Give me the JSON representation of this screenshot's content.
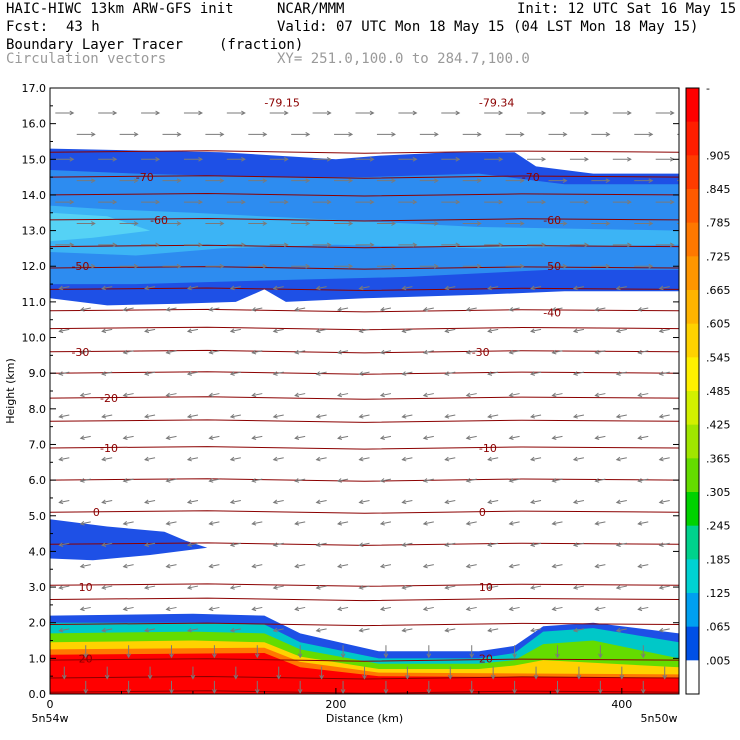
{
  "header": {
    "model_title": "HAIC-HIWC 13km ARW-GFS init",
    "org": "NCAR/MMM",
    "init": "Init: 12 UTC Sat 16 May 15",
    "fcst_label": "Fcst:",
    "fcst_value": "43 h",
    "valid": "Valid: 07 UTC Mon 18 May 15 (04 LST Mon 18 May 15)",
    "field": "Boundary Layer Tracer",
    "units": "(fraction)",
    "overlay": "Circulation vectors",
    "xsec": "XY= 251.0,100.0 to 284.7,100.0"
  },
  "chart_data": {
    "type": "heatmap",
    "title": "Boundary Layer Tracer",
    "units": "(fraction)",
    "xlabel": "Distance (km)",
    "ylabel": "Height (km)",
    "xlim": [
      0,
      440
    ],
    "ylim": [
      0,
      17
    ],
    "x_ticks": [
      0,
      200,
      400
    ],
    "y_ticks": [
      "0.0",
      "1.0",
      "2.0",
      "3.0",
      "4.0",
      "5.0",
      "6.0",
      "7.0",
      "8.0",
      "9.0",
      "10.0",
      "11.0",
      "12.0",
      "13.0",
      "14.0",
      "15.0",
      "16.0",
      "17.0"
    ],
    "x_endpoint_labels": {
      "left": "5n54w",
      "right": "5n50w"
    },
    "colorbar": {
      "labels": [
        "-",
        ".905",
        ".845",
        ".785",
        ".725",
        ".665",
        ".605",
        ".545",
        ".485",
        ".425",
        ".365",
        ".305",
        ".245",
        ".185",
        ".125",
        ".065",
        ".005"
      ],
      "colors": [
        "#ff0000",
        "#ff1e00",
        "#ff3c00",
        "#ff5a00",
        "#ff7800",
        "#ff9600",
        "#ffb400",
        "#ffd200",
        "#fff000",
        "#d2f000",
        "#a0e600",
        "#64dc00",
        "#00d200",
        "#00d28c",
        "#00d2d2",
        "#00a0f0",
        "#0050e6",
        "#ffffff"
      ]
    },
    "temperature_contours": {
      "color": "#8b0000",
      "labeled_levels": [
        {
          "value": "-79.15",
          "x": 150,
          "y": 16.6
        },
        {
          "value": "-79.34",
          "x": 300,
          "y": 16.6
        },
        {
          "value": "-70",
          "x": 60,
          "y": 14.5
        },
        {
          "value": "-70",
          "x": 330,
          "y": 14.5
        },
        {
          "value": "-60",
          "x": 70,
          "y": 13.3
        },
        {
          "value": "-60",
          "x": 345,
          "y": 13.3
        },
        {
          "value": "-50",
          "x": 15,
          "y": 12.0
        },
        {
          "value": "-50",
          "x": 345,
          "y": 12.0
        },
        {
          "value": "-40",
          "x": 345,
          "y": 10.7
        },
        {
          "value": "-30",
          "x": 15,
          "y": 9.6
        },
        {
          "value": "-30",
          "x": 295,
          "y": 9.6
        },
        {
          "value": "-20",
          "x": 35,
          "y": 8.3
        },
        {
          "value": "-10",
          "x": 35,
          "y": 6.9
        },
        {
          "value": "-10",
          "x": 300,
          "y": 6.9
        },
        {
          "value": "0",
          "x": 30,
          "y": 5.1
        },
        {
          "value": "0",
          "x": 300,
          "y": 5.1
        },
        {
          "value": "10",
          "x": 20,
          "y": 3.0
        },
        {
          "value": "10",
          "x": 300,
          "y": 3.0
        },
        {
          "value": "20",
          "x": 20,
          "y": 1.0
        },
        {
          "value": "20",
          "x": 300,
          "y": 1.0
        }
      ],
      "line_levels_km": [
        0.05,
        0.45,
        0.95,
        1.95,
        2.65,
        3.05,
        4.2,
        5.1,
        6.0,
        6.9,
        7.65,
        8.3,
        9.0,
        9.6,
        10.25,
        10.75,
        11.35,
        11.95,
        12.55,
        13.3,
        14.0,
        14.5,
        15.2
      ]
    },
    "wind_vectors": {
      "rows_km": [
        16.3,
        15.7,
        15.0,
        14.4,
        13.8,
        13.2,
        12.6,
        12.0,
        11.4,
        10.8,
        10.2,
        9.6,
        9.0,
        8.4,
        7.8,
        7.2,
        6.6,
        6.0,
        5.4,
        4.8,
        4.2,
        3.6,
        3.0,
        2.4,
        1.8,
        1.2,
        0.6,
        0.2
      ],
      "direction_by_row": [
        "east",
        "east",
        "east",
        "east",
        "east",
        "east",
        "east",
        "east",
        "west",
        "west",
        "west",
        "west",
        "west",
        "west",
        "west",
        "west",
        "west",
        "west",
        "west",
        "west",
        "west",
        "west",
        "west",
        "west",
        "west",
        "south",
        "south",
        "south"
      ]
    }
  }
}
